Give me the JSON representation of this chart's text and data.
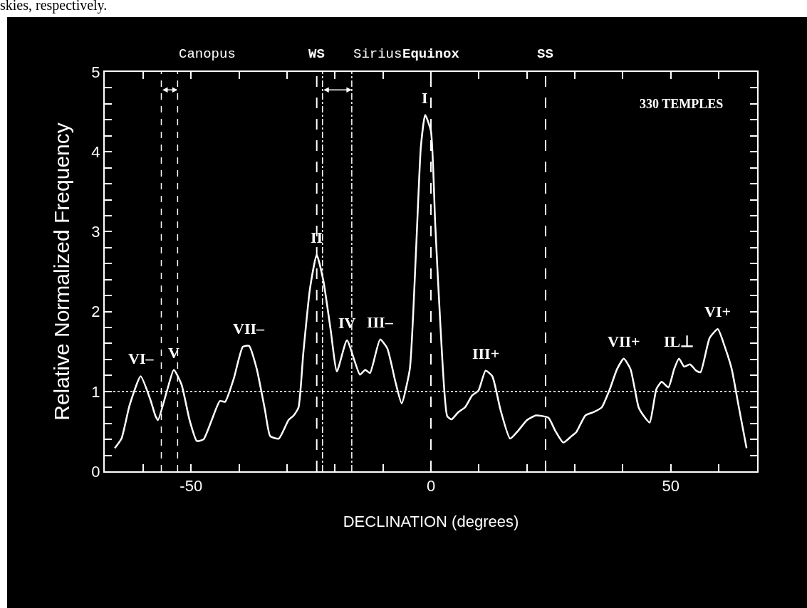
{
  "chart_data": {
    "type": "line",
    "xlabel": "DECLINATION (degrees)",
    "ylabel": "Relative Normalized Frequency",
    "x": [
      -65.9,
      -64.5,
      -62.8,
      -60.5,
      -58.5,
      -57.4,
      -56.9,
      -55.1,
      -53.6,
      -52.0,
      -50.3,
      -48.8,
      -47.4,
      -45.7,
      -44.0,
      -42.9,
      -41.1,
      -39.2,
      -37.9,
      -36.3,
      -34.6,
      -33.5,
      -31.7,
      -29.7,
      -28.6,
      -27.6,
      -26.6,
      -25.2,
      -23.8,
      -22.4,
      -20.9,
      -19.6,
      -17.5,
      -14.8,
      -13.7,
      -12.7,
      -10.6,
      -9.1,
      -7.4,
      -6.1,
      -4.4,
      -3.1,
      -2.1,
      -1.2,
      0.0,
      0.9,
      2.0,
      3.4,
      4.3,
      5.7,
      7.1,
      8.6,
      9.9,
      11.4,
      12.8,
      14.5,
      16.5,
      18.2,
      20.0,
      21.9,
      24.5,
      25.9,
      27.6,
      29.3,
      30.3,
      32.2,
      33.9,
      35.6,
      37.3,
      38.8,
      40.2,
      41.6,
      43.3,
      44.4,
      45.6,
      47.0,
      48.1,
      49.5,
      50.7,
      51.7,
      52.8,
      54.0,
      55.3,
      56.2,
      58.1,
      59.8,
      61.2,
      62.7,
      64.1,
      65.8
    ],
    "series": [
      {
        "color": "#ffffff",
        "values": [
          0.29,
          0.41,
          0.83,
          1.19,
          0.9,
          0.69,
          0.64,
          0.99,
          1.27,
          1.09,
          0.64,
          0.38,
          0.4,
          0.64,
          0.88,
          0.87,
          1.16,
          1.56,
          1.57,
          1.28,
          0.77,
          0.44,
          0.41,
          0.64,
          0.7,
          0.8,
          1.48,
          2.29,
          2.71,
          2.38,
          1.77,
          1.25,
          1.64,
          1.21,
          1.27,
          1.23,
          1.65,
          1.54,
          1.12,
          0.85,
          1.28,
          2.77,
          4.06,
          4.46,
          4.26,
          3.09,
          1.8,
          0.69,
          0.65,
          0.74,
          0.8,
          0.95,
          1.01,
          1.26,
          1.19,
          0.77,
          0.41,
          0.51,
          0.64,
          0.7,
          0.67,
          0.51,
          0.36,
          0.44,
          0.49,
          0.7,
          0.74,
          0.8,
          1.03,
          1.28,
          1.41,
          1.28,
          0.8,
          0.69,
          0.61,
          1.03,
          1.12,
          1.05,
          1.28,
          1.41,
          1.31,
          1.34,
          1.26,
          1.24,
          1.67,
          1.78,
          1.57,
          1.28,
          0.83,
          0.29
        ]
      }
    ],
    "xlim": [
      -68,
      68
    ],
    "xticks": [
      {
        "value": -60,
        "label": null
      },
      -50,
      {
        "value": -40,
        "label": null
      },
      {
        "value": -30,
        "label": null
      },
      {
        "value": -20,
        "label": null
      },
      {
        "value": -10,
        "label": null
      },
      0,
      {
        "value": 10,
        "label": null
      },
      {
        "value": 20,
        "label": null
      },
      {
        "value": 30,
        "label": null
      },
      {
        "value": 40,
        "label": null
      },
      50,
      {
        "value": 60,
        "label": null
      }
    ],
    "ylim": [
      0,
      5
    ],
    "yticks": [
      0,
      {
        "value": 0.2,
        "label": null
      },
      {
        "value": 0.4,
        "label": null
      },
      {
        "value": 0.6,
        "label": null
      },
      {
        "value": 0.8,
        "label": null
      },
      1,
      {
        "value": 1.2,
        "label": null
      },
      {
        "value": 1.4,
        "label": null
      },
      {
        "value": 1.6,
        "label": null
      },
      {
        "value": 1.8,
        "label": null
      },
      2,
      {
        "value": 2.2,
        "label": null
      },
      {
        "value": 2.4,
        "label": null
      },
      {
        "value": 2.6,
        "label": null
      },
      {
        "value": 2.8,
        "label": null
      },
      3,
      {
        "value": 3.2,
        "label": null
      },
      {
        "value": 3.4,
        "label": null
      },
      {
        "value": 3.6,
        "label": null
      },
      {
        "value": 3.8,
        "label": null
      },
      4,
      {
        "value": 4.2,
        "label": null
      },
      {
        "value": 4.4,
        "label": null
      },
      {
        "value": 4.6,
        "label": null
      },
      {
        "value": 4.8,
        "label": null
      },
      5
    ],
    "ref_lines": [
      {
        "axis": "x",
        "value": -56.2,
        "line_style": "dashed",
        "color": "#ffffff"
      },
      {
        "axis": "x",
        "value": -52.8,
        "label": "Canopus",
        "line_style": "dashed",
        "color": "#ffffff"
      },
      {
        "axis": "x",
        "value": -22.6,
        "line_style": "dotted",
        "color": "#ffffff"
      },
      {
        "axis": "x",
        "value": -16.5,
        "label": "Sirius",
        "line_style": "dotted",
        "color": "#ffffff"
      },
      {
        "axis": "x",
        "value": -23.8,
        "label": "WS",
        "line_style": "dashed",
        "color": "#ffffff"
      },
      {
        "axis": "x",
        "value": 0,
        "label": "Equinox",
        "line_style": "dashed",
        "color": "#ffffff"
      },
      {
        "axis": "x",
        "value": 23.9,
        "label": "SS",
        "line_style": "dashed",
        "color": "#ffffff"
      },
      {
        "axis": "y",
        "value": 1,
        "line_style": "dotted",
        "color": "#ffffff"
      }
    ],
    "annotations": [
      "skies, respectively.",
      "330 TEMPLES",
      {
        "text": "VI–",
        "x": -60.5,
        "y": 1.19
      },
      {
        "text": "V",
        "x": -53.6,
        "y": 1.27
      },
      {
        "text": "VII–",
        "x": -37.9,
        "y": 1.57
      },
      {
        "text": "II",
        "x": -23.8,
        "y": 2.71
      },
      {
        "text": "IV",
        "x": -17.5,
        "y": 1.64
      },
      {
        "text": "III–",
        "x": -10.6,
        "y": 1.65
      },
      {
        "text": "I",
        "x": -1.2,
        "y": 4.46
      },
      {
        "text": "III+",
        "x": 11.4,
        "y": 1.26
      },
      {
        "text": "VII+",
        "x": 40.2,
        "y": 1.41
      },
      {
        "text": "IL⊥",
        "x": 51.7,
        "y": 1.41
      },
      {
        "text": "VI+",
        "x": 59.8,
        "y": 1.78
      }
    ]
  }
}
